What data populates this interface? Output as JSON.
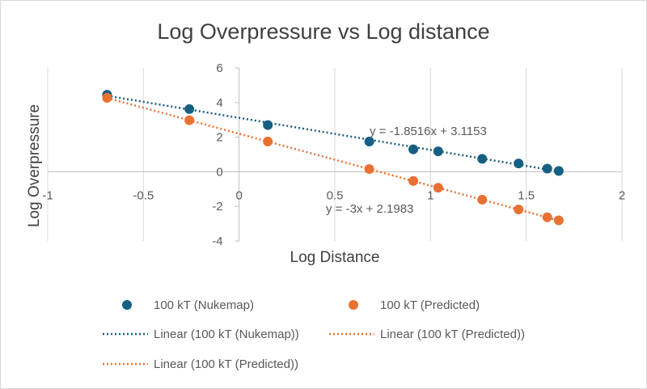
{
  "chart_data": {
    "type": "scatter",
    "title": "Log Overpressure vs Log distance",
    "xlabel": "Log Distance",
    "ylabel": "Log Overpressure",
    "xlim": [
      -1,
      2
    ],
    "ylim": [
      -4,
      6
    ],
    "x_ticks": [
      -1,
      -0.5,
      0,
      0.5,
      1,
      1.5,
      2
    ],
    "x_tick_labels": [
      "-1",
      "-0.5",
      "0",
      "0.5",
      "1",
      "1.5",
      "2"
    ],
    "y_ticks": [
      -4,
      -2,
      0,
      2,
      4,
      6
    ],
    "y_tick_labels": [
      "-4",
      "-2",
      "0",
      "2",
      "4",
      "6"
    ],
    "grid": "vertical",
    "series": [
      {
        "name": "100 kT (Nukemap)",
        "color": "#156082",
        "x": [
          -0.69,
          -0.26,
          0.15,
          0.68,
          0.91,
          1.04,
          1.27,
          1.46,
          1.61,
          1.67
        ],
        "y": [
          4.45,
          3.62,
          2.7,
          1.75,
          1.3,
          1.18,
          0.75,
          0.48,
          0.18,
          0.05
        ]
      },
      {
        "name": "100 kT (Predicted)",
        "color": "#E97132",
        "x": [
          -0.69,
          -0.26,
          0.15,
          0.68,
          0.91,
          1.04,
          1.27,
          1.46,
          1.61,
          1.67
        ],
        "y": [
          4.27,
          2.98,
          1.75,
          0.16,
          -0.53,
          -0.92,
          -1.61,
          -2.18,
          -2.63,
          -2.81
        ]
      }
    ],
    "trendlines": [
      {
        "name": "Linear (100 kT (Nukemap))",
        "color": "#156082",
        "slope": -1.8516,
        "intercept": 3.1153,
        "x_range": [
          -0.69,
          1.67
        ],
        "equation": "y = -1.8516x + 3.1153"
      },
      {
        "name": "Linear (100 kT (Predicted))",
        "color": "#E97132",
        "slope": -3,
        "intercept": 2.1983,
        "x_range": [
          -0.69,
          1.67
        ],
        "equation": "y = -3x + 2.1983"
      }
    ],
    "legend": [
      {
        "kind": "marker",
        "label": "100 kT (Nukemap)",
        "color": "#156082"
      },
      {
        "kind": "marker",
        "label": "100 kT (Predicted)",
        "color": "#E97132"
      },
      {
        "kind": "dotted-line",
        "label": "Linear (100 kT (Nukemap))",
        "color": "#156082"
      },
      {
        "kind": "dotted-line",
        "label": "Linear (100 kT (Predicted))",
        "color": "#E97132"
      },
      {
        "kind": "dotted-line",
        "label": "Linear (100 kT (Predicted))",
        "color": "#E97132"
      }
    ],
    "legend_position": "bottom"
  },
  "colors": {
    "grid": "#d9d9d9",
    "axis": "#bfbfbf",
    "text": "#595959",
    "title": "#404040",
    "label": "#404040"
  }
}
